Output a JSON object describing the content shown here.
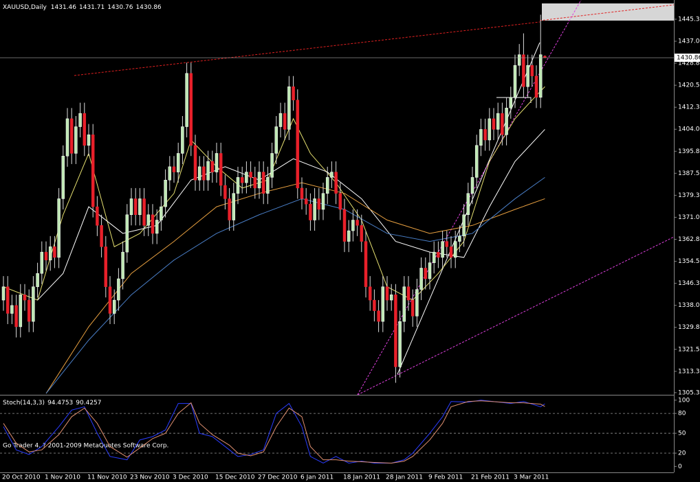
{
  "chart_data": [
    {
      "type": "candlestick",
      "title": "XAUUSD,Daily",
      "up_color": "#bfe8b4",
      "down_color": "#e8202a",
      "wick_color": "#dddddd",
      "categories": [
        "20 Oct 2010",
        null,
        null,
        null,
        null,
        null,
        null,
        null,
        null,
        null,
        "1 Nov 2010",
        null,
        null,
        null,
        null,
        null,
        null,
        null,
        null,
        null,
        "11 Nov 2010",
        null,
        null,
        null,
        null,
        null,
        null,
        null,
        null,
        null,
        "23 Nov 2010",
        null,
        null,
        null,
        null,
        null,
        null,
        null,
        null,
        null,
        "3 Dec 2010",
        null,
        null,
        null,
        null,
        null,
        null,
        null,
        null,
        null,
        "15 Dec 2010",
        null,
        null,
        null,
        null,
        null,
        null,
        null,
        null,
        null,
        "27 Dec 2010",
        null,
        null,
        null,
        null,
        null,
        null,
        null,
        null,
        null,
        "6 Jan 2011",
        null,
        null,
        null,
        null,
        null,
        null,
        null,
        null,
        null,
        "18 Jan 2011",
        null,
        null,
        null,
        null,
        null,
        null,
        null,
        null,
        null,
        "28 Jan 2011",
        null,
        null,
        null,
        null,
        null,
        null,
        null,
        null,
        null,
        "9 Feb 2011",
        null,
        null,
        null,
        null,
        null,
        null,
        null,
        null,
        null,
        "21 Feb 2011",
        null,
        null,
        null,
        null,
        null,
        null,
        null,
        null,
        null,
        "3 Mar 2011",
        null,
        null,
        null,
        null,
        null,
        null,
        null
      ],
      "open": [
        1340,
        1345,
        1335,
        1338,
        1330,
        1342,
        1340,
        1332,
        1345,
        1350,
        1358,
        1355,
        1360,
        1356,
        1378,
        1394,
        1408,
        1395,
        1405,
        1410,
        1398,
        1402,
        1375,
        1368,
        1360,
        1345,
        1335,
        1340,
        1348,
        1358,
        1372,
        1378,
        1372,
        1378,
        1368,
        1372,
        1365,
        1370,
        1375,
        1385,
        1390,
        1388,
        1395,
        1405,
        1425,
        1398,
        1385,
        1390,
        1385,
        1392,
        1388,
        1395,
        1383,
        1378,
        1370,
        1380,
        1386,
        1384,
        1388,
        1386,
        1382,
        1388,
        1380,
        1386,
        1395,
        1405,
        1410,
        1404,
        1420,
        1415,
        1382,
        1378,
        1376,
        1370,
        1378,
        1374,
        1380,
        1386,
        1388,
        1380,
        1374,
        1362,
        1366,
        1370,
        1368,
        1362,
        1345,
        1340,
        1336,
        1332,
        1345,
        1340,
        1342,
        1315,
        1332,
        1345,
        1340,
        1334,
        1344,
        1352,
        1348,
        1354,
        1358,
        1356,
        1362,
        1360,
        1356,
        1362,
        1364,
        1372,
        1380,
        1386,
        1398,
        1404,
        1400,
        1408,
        1404,
        1410,
        1402,
        1412,
        1416,
        1428,
        1432,
        1420,
        1428,
        1424,
        1416,
        1431.46
      ],
      "high": [
        1349,
        1349,
        1342,
        1342,
        1346,
        1346,
        1344,
        1349,
        1354,
        1362,
        1362,
        1364,
        1364,
        1382,
        1398,
        1412,
        1412,
        1409,
        1414,
        1414,
        1406,
        1406,
        1379,
        1372,
        1364,
        1349,
        1344,
        1352,
        1362,
        1376,
        1382,
        1382,
        1382,
        1382,
        1376,
        1376,
        1374,
        1379,
        1389,
        1394,
        1394,
        1399,
        1409,
        1429,
        1429,
        1402,
        1394,
        1394,
        1396,
        1396,
        1399,
        1399,
        1387,
        1382,
        1384,
        1390,
        1390,
        1392,
        1392,
        1390,
        1392,
        1392,
        1390,
        1399,
        1409,
        1414,
        1414,
        1424,
        1424,
        1419,
        1386,
        1382,
        1380,
        1382,
        1382,
        1384,
        1390,
        1392,
        1392,
        1384,
        1378,
        1370,
        1374,
        1374,
        1372,
        1366,
        1349,
        1344,
        1340,
        1349,
        1349,
        1346,
        1346,
        1336,
        1349,
        1349,
        1344,
        1348,
        1356,
        1356,
        1358,
        1362,
        1362,
        1366,
        1366,
        1364,
        1366,
        1368,
        1376,
        1384,
        1390,
        1402,
        1408,
        1408,
        1412,
        1412,
        1414,
        1414,
        1416,
        1420,
        1432,
        1436,
        1440,
        1432,
        1432,
        1428,
        1447,
        1431.71
      ],
      "low": [
        1336,
        1331,
        1331,
        1326,
        1326,
        1336,
        1328,
        1328,
        1341,
        1346,
        1351,
        1351,
        1352,
        1352,
        1374,
        1390,
        1391,
        1391,
        1401,
        1394,
        1394,
        1371,
        1364,
        1356,
        1341,
        1331,
        1331,
        1336,
        1344,
        1354,
        1368,
        1368,
        1368,
        1364,
        1364,
        1361,
        1361,
        1366,
        1371,
        1381,
        1384,
        1384,
        1391,
        1401,
        1394,
        1381,
        1381,
        1381,
        1381,
        1384,
        1384,
        1379,
        1374,
        1366,
        1366,
        1376,
        1380,
        1380,
        1382,
        1378,
        1378,
        1376,
        1376,
        1382,
        1391,
        1401,
        1400,
        1400,
        1411,
        1378,
        1374,
        1372,
        1366,
        1366,
        1370,
        1370,
        1376,
        1382,
        1376,
        1370,
        1358,
        1358,
        1362,
        1364,
        1358,
        1341,
        1336,
        1332,
        1328,
        1328,
        1336,
        1336,
        1309,
        1311,
        1328,
        1336,
        1330,
        1330,
        1340,
        1344,
        1344,
        1350,
        1352,
        1352,
        1356,
        1352,
        1352,
        1358,
        1360,
        1368,
        1376,
        1382,
        1394,
        1396,
        1396,
        1400,
        1400,
        1398,
        1398,
        1408,
        1412,
        1424,
        1416,
        1416,
        1420,
        1412,
        1412,
        1430.76
      ],
      "close": [
        1345,
        1335,
        1338,
        1330,
        1342,
        1340,
        1332,
        1345,
        1350,
        1358,
        1355,
        1360,
        1356,
        1378,
        1394,
        1408,
        1395,
        1405,
        1410,
        1398,
        1402,
        1375,
        1368,
        1360,
        1345,
        1335,
        1340,
        1348,
        1358,
        1372,
        1378,
        1372,
        1378,
        1368,
        1372,
        1365,
        1370,
        1375,
        1385,
        1390,
        1388,
        1395,
        1405,
        1425,
        1398,
        1385,
        1390,
        1385,
        1392,
        1388,
        1395,
        1383,
        1378,
        1370,
        1380,
        1386,
        1384,
        1388,
        1386,
        1382,
        1388,
        1380,
        1386,
        1395,
        1405,
        1410,
        1404,
        1420,
        1415,
        1382,
        1378,
        1376,
        1370,
        1378,
        1374,
        1380,
        1386,
        1388,
        1380,
        1374,
        1362,
        1366,
        1370,
        1368,
        1362,
        1345,
        1340,
        1336,
        1332,
        1345,
        1340,
        1342,
        1315,
        1332,
        1345,
        1340,
        1334,
        1344,
        1352,
        1348,
        1354,
        1358,
        1356,
        1362,
        1360,
        1356,
        1362,
        1364,
        1372,
        1380,
        1386,
        1398,
        1404,
        1400,
        1408,
        1404,
        1410,
        1402,
        1412,
        1416,
        1428,
        1432,
        1420,
        1428,
        1424,
        1416,
        1432,
        1430.86
      ],
      "series": [
        {
          "color": "#e6e070",
          "x": [
            0,
            8,
            14,
            20,
            26,
            32,
            40,
            44,
            50,
            56,
            62,
            68,
            72,
            78,
            84,
            90,
            96,
            102,
            108,
            114,
            120,
            124,
            127
          ],
          "values": [
            1345,
            1340,
            1372,
            1395,
            1360,
            1365,
            1380,
            1400,
            1390,
            1382,
            1385,
            1408,
            1395,
            1384,
            1370,
            1345,
            1340,
            1350,
            1362,
            1392,
            1408,
            1415,
            1420
          ]
        },
        {
          "color": "#ffffff",
          "x": [
            8,
            14,
            20,
            28,
            36,
            44,
            52,
            60,
            68,
            76,
            84,
            92,
            100,
            108,
            114,
            120,
            127
          ],
          "values": [
            1340,
            1350,
            1375,
            1365,
            1368,
            1385,
            1390,
            1385,
            1393,
            1388,
            1378,
            1362,
            1358,
            1356,
            1375,
            1392,
            1404
          ]
        },
        {
          "color": "#e8a040",
          "x": [
            10,
            20,
            30,
            40,
            50,
            60,
            70,
            80,
            90,
            100,
            110,
            120,
            127
          ],
          "values": [
            1305,
            1330,
            1350,
            1362,
            1375,
            1380,
            1384,
            1380,
            1370,
            1365,
            1368,
            1374,
            1378
          ]
        },
        {
          "color": "#4a7fc8",
          "x": [
            10,
            20,
            30,
            40,
            50,
            60,
            70,
            80,
            90,
            100,
            110,
            120,
            127
          ],
          "values": [
            1305,
            1325,
            1342,
            1355,
            1365,
            1372,
            1378,
            1374,
            1365,
            1362,
            1365,
            1378,
            1386
          ]
        }
      ],
      "ylim": [
        1304.5,
        1452.5
      ],
      "yticks": [
        {
          "value": 1445.3,
          "label": "1445.30"
        },
        1437.05,
        {
          "value": 1428.8,
          "label": "1428.80"
        },
        1420.55,
        {
          "value": 1412.3,
          "label": "1412.30"
        },
        1404.05,
        {
          "value": 1395.8,
          "label": "1395.80"
        },
        1387.55,
        {
          "value": 1379.3,
          "label": "1379.30"
        },
        1371.05,
        {
          "value": 1362.8,
          "label": "1362.80"
        },
        1354.55,
        {
          "value": 1346.3,
          "label": "1346.30"
        },
        1338.05,
        {
          "value": 1329.8,
          "label": "1329.80"
        },
        1321.55,
        {
          "value": 1313.3,
          "label": "1313.30"
        },
        {
          "value": 1305.3,
          "label": "1305.30"
        }
      ]
    },
    {
      "type": "line",
      "title": "Stoch(14,3,3)",
      "series": [
        {
          "color": "#2a3cff",
          "x": [
            0,
            3,
            6,
            9,
            13,
            16,
            19,
            22,
            25,
            29,
            32,
            35,
            38,
            41,
            44,
            46,
            49,
            53,
            55,
            58,
            61,
            64,
            67,
            70,
            72,
            75,
            78,
            81,
            84,
            87,
            91,
            94,
            96,
            100,
            103,
            105,
            109,
            112,
            119,
            122,
            126,
            127
          ],
          "values": [
            60,
            25,
            18,
            30,
            60,
            85,
            90,
            50,
            15,
            10,
            40,
            45,
            55,
            95,
            95,
            50,
            45,
            25,
            15,
            18,
            25,
            80,
            95,
            60,
            15,
            5,
            15,
            5,
            8,
            5,
            5,
            10,
            20,
            50,
            75,
            98,
            97,
            100,
            95,
            98,
            90,
            94.4753
          ]
        },
        {
          "color": "#e09070",
          "x": [
            0,
            3,
            6,
            9,
            13,
            16,
            19,
            22,
            25,
            29,
            32,
            35,
            38,
            41,
            44,
            46,
            49,
            53,
            55,
            58,
            61,
            64,
            67,
            70,
            72,
            75,
            78,
            81,
            84,
            87,
            91,
            94,
            96,
            100,
            103,
            105,
            109,
            112,
            119,
            122,
            126,
            127
          ],
          "values": [
            65,
            35,
            22,
            25,
            48,
            75,
            88,
            65,
            30,
            14,
            28,
            42,
            50,
            80,
            96,
            65,
            48,
            32,
            20,
            16,
            22,
            60,
            88,
            75,
            30,
            10,
            10,
            8,
            7,
            6,
            5,
            8,
            15,
            40,
            65,
            90,
            98,
            99,
            96,
            96,
            94,
            90.4257
          ]
        }
      ],
      "ylim": [
        -9,
        106
      ],
      "yticks": [
        100,
        80,
        50,
        20,
        0
      ],
      "levels": [
        80,
        50,
        20
      ]
    }
  ],
  "footer": "Go Trader 4, ? 2001-2009 MetaQuotes Software Corp."
}
